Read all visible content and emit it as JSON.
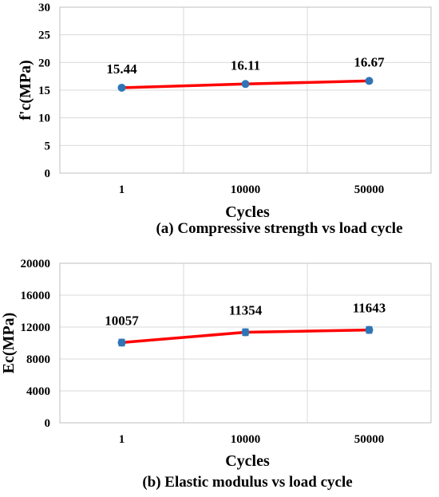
{
  "chart_data": [
    {
      "type": "line",
      "caption": "(a) Compressive strength vs load cycle",
      "xlabel": "Cycles",
      "ylabel": "f'c(MPa)",
      "categories": [
        "1",
        "10000",
        "50000"
      ],
      "values": [
        15.44,
        16.11,
        16.67
      ],
      "data_labels": [
        "15.44",
        "16.11",
        "16.67"
      ],
      "ylim": [
        0,
        30
      ],
      "yticks": [
        0,
        5,
        10,
        15,
        20,
        25,
        30
      ],
      "ytick_labels": [
        "0",
        "5",
        "10",
        "15",
        "20",
        "25",
        "30"
      ],
      "grid": true,
      "error_bars": false,
      "line_color": "#ff0000",
      "marker_color": "#2e75b6"
    },
    {
      "type": "line",
      "caption": "(b) Elastic modulus vs load cycle",
      "xlabel": "Cycles",
      "ylabel": "Ec(MPa)",
      "categories": [
        "1",
        "10000",
        "50000"
      ],
      "values": [
        10057,
        11354,
        11643
      ],
      "data_labels": [
        "10057",
        "11354",
        "11643"
      ],
      "error": [
        400,
        400,
        400
      ],
      "ylim": [
        0,
        20000
      ],
      "yticks": [
        0,
        4000,
        8000,
        12000,
        16000,
        20000
      ],
      "ytick_labels": [
        "0",
        "4000",
        "8000",
        "12000",
        "16000",
        "20000"
      ],
      "grid": true,
      "error_bars": true,
      "line_color": "#ff0000",
      "marker_color": "#2e75b6"
    }
  ]
}
